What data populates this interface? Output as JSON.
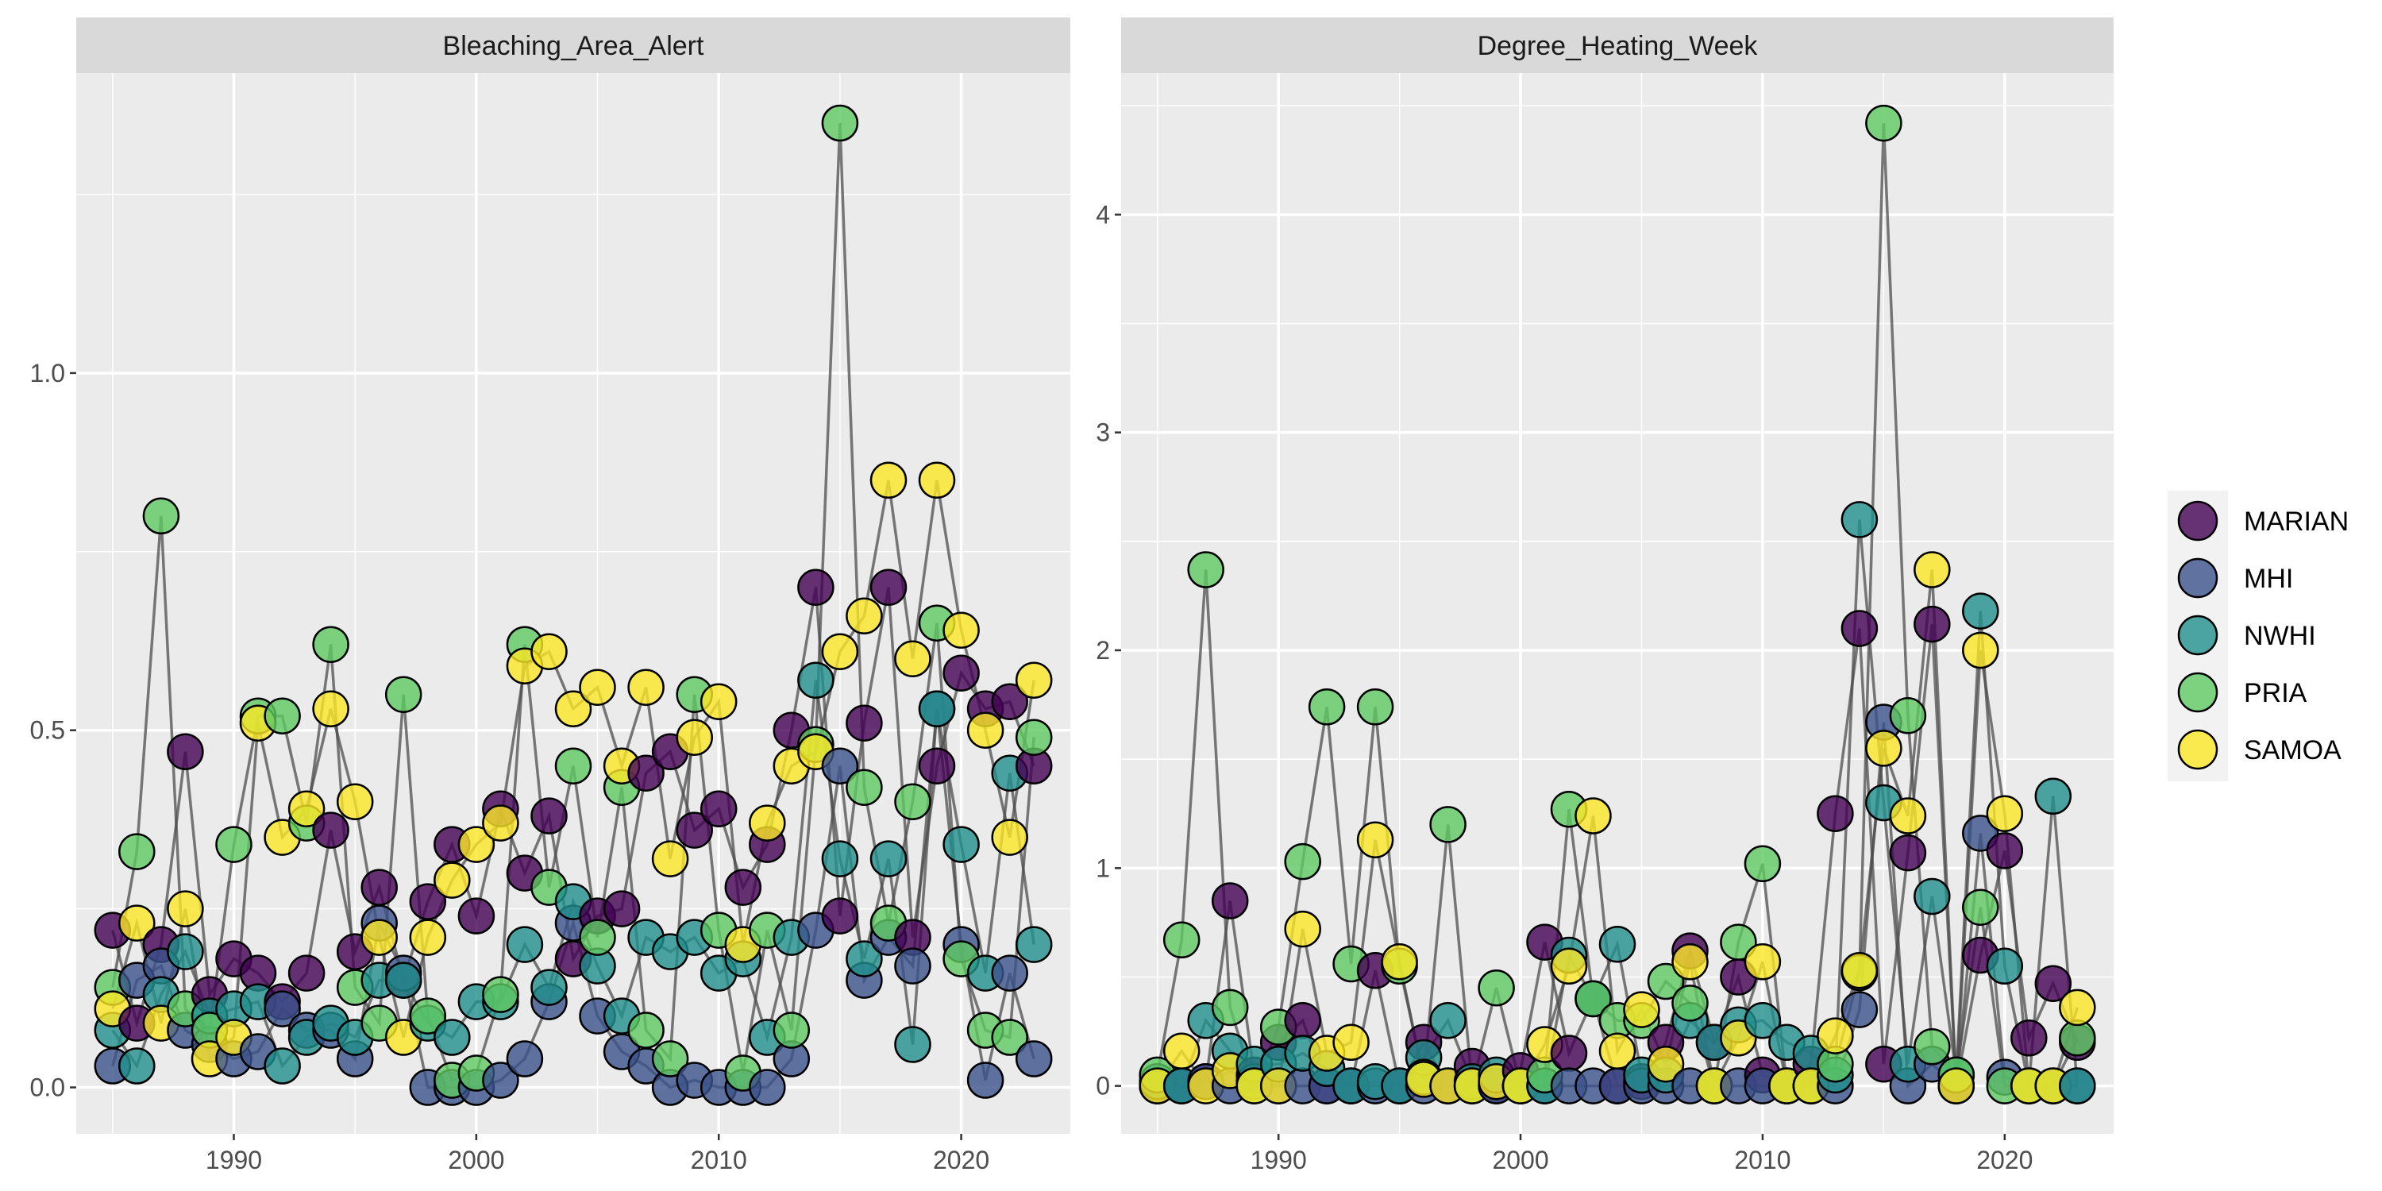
{
  "colors": {
    "panel_background": "#ebebeb",
    "strip_background": "#d9d9d9",
    "grid_major": "#ffffff",
    "line": "#4d4d4d",
    "point_outline": "#000000"
  },
  "legend": {
    "entries": [
      {
        "name": "MARIAN",
        "color": "#440154"
      },
      {
        "name": "MHI",
        "color": "#3b528b"
      },
      {
        "name": "NWHI",
        "color": "#21908c"
      },
      {
        "name": "PRIA",
        "color": "#5ec962"
      },
      {
        "name": "SAMOA",
        "color": "#fde725"
      }
    ]
  },
  "chart_data": [
    {
      "type": "scatter",
      "title": "Bleaching_Area_Alert",
      "xlabel": "",
      "ylabel": "",
      "xlim": [
        1983.5,
        2024.5
      ],
      "ylim": [
        -0.065,
        1.42
      ],
      "x_ticks": [
        1990,
        2000,
        2010,
        2020
      ],
      "y_ticks": [
        0.0,
        0.5,
        1.0
      ],
      "y_tick_labels": [
        "0.0",
        "0.5",
        "1.0"
      ],
      "years": [
        1985,
        1986,
        1987,
        1988,
        1989,
        1990,
        1991,
        1992,
        1993,
        1994,
        1995,
        1996,
        1997,
        1998,
        1999,
        2000,
        2001,
        2002,
        2003,
        2004,
        2005,
        2006,
        2007,
        2008,
        2009,
        2010,
        2011,
        2012,
        2013,
        2014,
        2015,
        2016,
        2017,
        2018,
        2019,
        2020,
        2021,
        2022,
        2023
      ],
      "series": [
        {
          "name": "MARIAN",
          "values": [
            0.22,
            0.09,
            0.2,
            0.47,
            0.13,
            0.18,
            0.16,
            0.12,
            0.16,
            0.36,
            0.19,
            0.28,
            0.15,
            0.26,
            0.34,
            0.24,
            0.39,
            0.3,
            0.38,
            0.18,
            0.24,
            0.25,
            0.44,
            0.47,
            0.36,
            0.39,
            0.28,
            0.34,
            0.5,
            0.7,
            0.24,
            0.51,
            0.7,
            0.21,
            0.45,
            0.58,
            0.53,
            0.54,
            0.45
          ]
        },
        {
          "name": "MHI",
          "values": [
            0.03,
            0.15,
            0.17,
            0.08,
            0.06,
            0.04,
            0.05,
            0.11,
            0.08,
            0.08,
            0.04,
            0.23,
            0.16,
            0.0,
            0.0,
            0.0,
            0.01,
            0.04,
            0.12,
            0.23,
            0.1,
            0.05,
            0.03,
            0.0,
            0.01,
            0.0,
            0.0,
            0.0,
            0.04,
            0.22,
            0.45,
            0.15,
            0.21,
            0.17,
            0.53,
            0.2,
            0.01,
            0.16,
            0.04
          ]
        },
        {
          "name": "NWHI",
          "values": [
            0.08,
            0.03,
            0.13,
            0.19,
            0.1,
            0.11,
            0.12,
            0.03,
            0.07,
            0.09,
            0.07,
            0.15,
            0.15,
            0.09,
            0.07,
            0.12,
            0.12,
            0.2,
            0.14,
            0.26,
            0.17,
            0.1,
            0.21,
            0.19,
            0.21,
            0.16,
            0.18,
            0.07,
            0.21,
            0.57,
            0.32,
            0.18,
            0.32,
            0.06,
            0.53,
            0.34,
            0.16,
            0.44,
            0.2
          ]
        },
        {
          "name": "PRIA",
          "values": [
            0.14,
            0.33,
            0.8,
            0.11,
            0.08,
            0.34,
            0.52,
            0.52,
            0.37,
            0.62,
            0.14,
            0.09,
            0.55,
            0.1,
            0.01,
            0.02,
            0.13,
            0.62,
            0.28,
            0.45,
            0.21,
            0.42,
            0.08,
            0.04,
            0.55,
            0.22,
            0.02,
            0.22,
            0.08,
            0.48,
            1.35,
            0.42,
            0.23,
            0.4,
            0.65,
            0.18,
            0.08,
            0.07,
            0.49
          ]
        },
        {
          "name": "SAMOA",
          "values": [
            0.11,
            0.23,
            0.09,
            0.25,
            0.04,
            0.07,
            0.51,
            0.35,
            0.39,
            0.53,
            0.4,
            0.21,
            0.07,
            0.21,
            0.29,
            0.34,
            0.37,
            0.59,
            0.61,
            0.53,
            0.56,
            0.45,
            0.56,
            0.32,
            0.49,
            0.54,
            0.2,
            0.37,
            0.45,
            0.47,
            0.61,
            0.66,
            0.85,
            0.6,
            0.85,
            0.64,
            0.5,
            0.35,
            0.57
          ]
        }
      ]
    },
    {
      "type": "scatter",
      "title": "Degree_Heating_Week",
      "xlabel": "",
      "ylabel": "",
      "xlim": [
        1983.5,
        2024.5
      ],
      "ylim": [
        -0.22,
        4.65
      ],
      "x_ticks": [
        1990,
        2000,
        2010,
        2020
      ],
      "y_ticks": [
        0,
        1,
        2,
        3,
        4
      ],
      "y_tick_labels": [
        "0",
        "1",
        "2",
        "3",
        "4"
      ],
      "years": [
        1985,
        1986,
        1987,
        1988,
        1989,
        1990,
        1991,
        1992,
        1993,
        1994,
        1995,
        1996,
        1997,
        1998,
        1999,
        2000,
        2001,
        2002,
        2003,
        2004,
        2005,
        2006,
        2007,
        2008,
        2009,
        2010,
        2011,
        2012,
        2013,
        2014,
        2015,
        2016,
        2017,
        2018,
        2019,
        2020,
        2021,
        2022,
        2023
      ],
      "series": [
        {
          "name": "MARIAN",
          "values": [
            0.0,
            0.0,
            0.02,
            0.85,
            0.05,
            0.2,
            0.3,
            0.0,
            0.0,
            0.53,
            0.0,
            0.2,
            0.0,
            0.09,
            0.0,
            0.07,
            0.66,
            0.15,
            0.4,
            0.0,
            0.02,
            0.2,
            0.62,
            0.2,
            0.5,
            0.05,
            0.0,
            0.1,
            1.25,
            2.1,
            0.1,
            1.07,
            2.12,
            0.0,
            0.6,
            1.08,
            0.22,
            0.47,
            0.2
          ]
        },
        {
          "name": "MHI",
          "values": [
            0.0,
            0.0,
            0.02,
            0.0,
            0.02,
            0.0,
            0.0,
            0.0,
            0.0,
            0.0,
            0.0,
            0.0,
            0.0,
            0.0,
            0.0,
            0.0,
            0.0,
            0.0,
            0.0,
            0.0,
            0.0,
            0.0,
            0.0,
            0.0,
            0.0,
            0.0,
            0.0,
            0.0,
            0.0,
            0.35,
            1.67,
            0.0,
            0.1,
            0.0,
            1.16,
            0.04,
            0.0,
            0.0,
            0.0
          ]
        },
        {
          "name": "NWHI",
          "values": [
            0.02,
            0.0,
            0.3,
            0.16,
            0.1,
            0.1,
            0.15,
            0.08,
            0.0,
            0.02,
            0.0,
            0.13,
            0.3,
            0.02,
            0.05,
            0.0,
            0.0,
            0.6,
            0.4,
            0.65,
            0.05,
            0.05,
            0.3,
            0.2,
            0.28,
            0.3,
            0.2,
            0.15,
            0.05,
            2.6,
            1.3,
            0.1,
            0.87,
            0.05,
            2.18,
            0.55,
            0.0,
            1.33,
            0.0
          ]
        },
        {
          "name": "PRIA",
          "values": [
            0.05,
            0.67,
            2.37,
            0.36,
            0.0,
            0.27,
            1.03,
            1.74,
            0.56,
            1.74,
            0.55,
            0.04,
            1.2,
            0.0,
            0.45,
            0.0,
            0.05,
            1.27,
            0.4,
            0.3,
            0.3,
            0.48,
            0.38,
            0.0,
            0.66,
            1.02,
            0.0,
            0.0,
            0.1,
            0.52,
            4.42,
            1.7,
            0.18,
            0.05,
            0.82,
            0.0,
            0.0,
            0.0,
            0.22
          ]
        },
        {
          "name": "SAMOA",
          "values": [
            0.0,
            0.16,
            0.0,
            0.07,
            0.0,
            0.0,
            0.72,
            0.15,
            0.2,
            1.13,
            0.57,
            0.03,
            0.0,
            0.0,
            0.02,
            0.0,
            0.19,
            0.55,
            1.24,
            0.16,
            0.35,
            0.1,
            0.57,
            0.0,
            0.22,
            0.57,
            0.0,
            0.0,
            0.23,
            0.53,
            1.55,
            1.24,
            2.37,
            0.0,
            2.0,
            1.25,
            0.0,
            0.0,
            0.36
          ]
        }
      ]
    }
  ]
}
